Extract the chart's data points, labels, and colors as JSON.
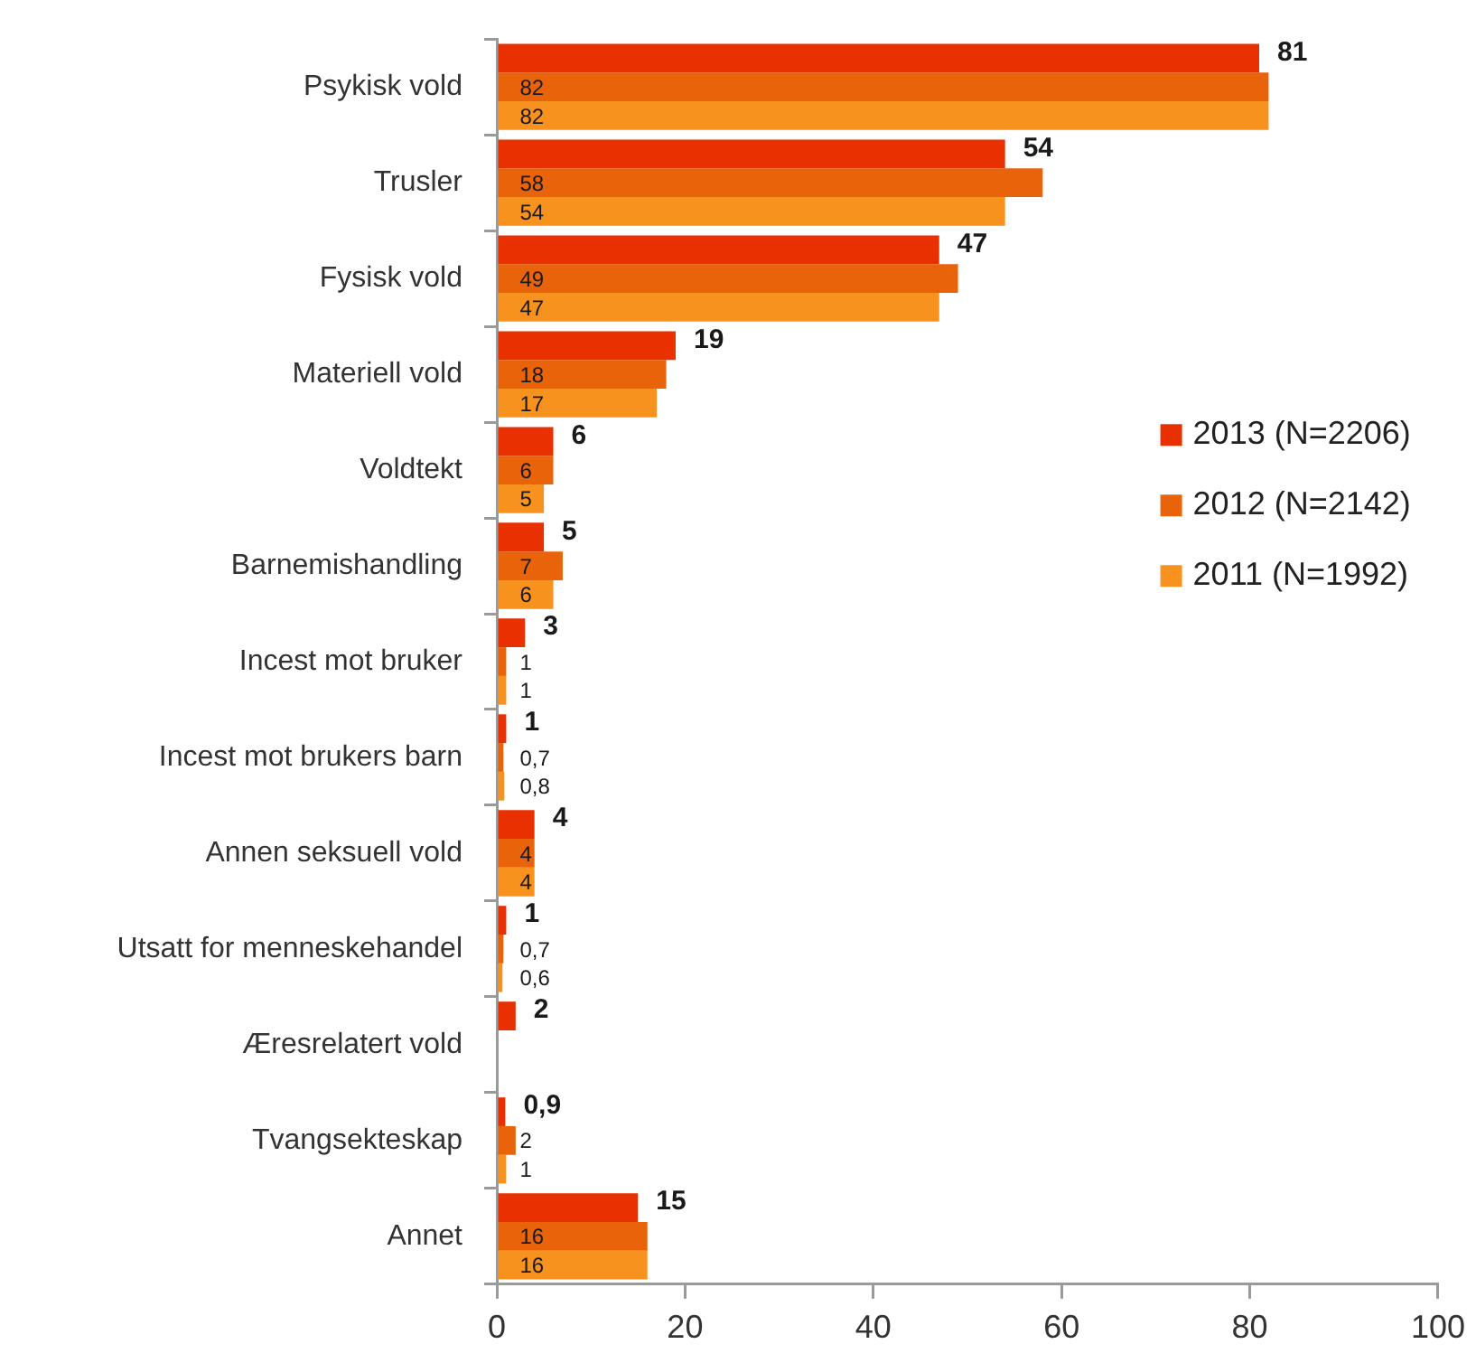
{
  "chart_data": {
    "type": "bar",
    "orientation": "horizontal",
    "categories": [
      "Psykisk vold",
      "Trusler",
      "Fysisk vold",
      "Materiell vold",
      "Voldtekt",
      "Barnemishandling",
      "Incest mot bruker",
      "Incest mot brukers barn",
      "Annen seksuell vold",
      "Utsatt for menneskehandel",
      "Æresrelatert vold",
      "Tvangsekteskap",
      "Annet"
    ],
    "series": [
      {
        "name": "2013 (N=2206)",
        "color": "#e93000",
        "values": [
          81,
          54,
          47,
          19,
          6,
          5,
          3,
          1,
          4,
          1,
          2,
          0.9,
          15
        ],
        "value_labels": [
          "81",
          "54",
          "47",
          "19",
          "6",
          "5",
          "3",
          "1",
          "4",
          "1",
          "2",
          "0,9",
          "15"
        ]
      },
      {
        "name": "2012 (N=2142)",
        "color": "#e8630a",
        "values": [
          82,
          58,
          49,
          18,
          6,
          7,
          1,
          0.7,
          4,
          0.7,
          null,
          2,
          16
        ],
        "value_labels": [
          "82",
          "58",
          "49",
          "18",
          "6",
          "7",
          "1",
          "0,7",
          "4",
          "0,7",
          null,
          "2",
          "16"
        ]
      },
      {
        "name": "2011 (N=1992)",
        "color": "#f8921e",
        "values": [
          82,
          54,
          47,
          17,
          5,
          6,
          1,
          0.8,
          4,
          0.6,
          null,
          1,
          16
        ],
        "value_labels": [
          "82",
          "54",
          "47",
          "17",
          "5",
          "6",
          "1",
          "0,8",
          "4",
          "0,6",
          null,
          "1",
          "16"
        ]
      }
    ],
    "xlim": [
      0,
      100
    ],
    "xticks": [
      0,
      20,
      40,
      60,
      80,
      100
    ],
    "legend": "right"
  }
}
